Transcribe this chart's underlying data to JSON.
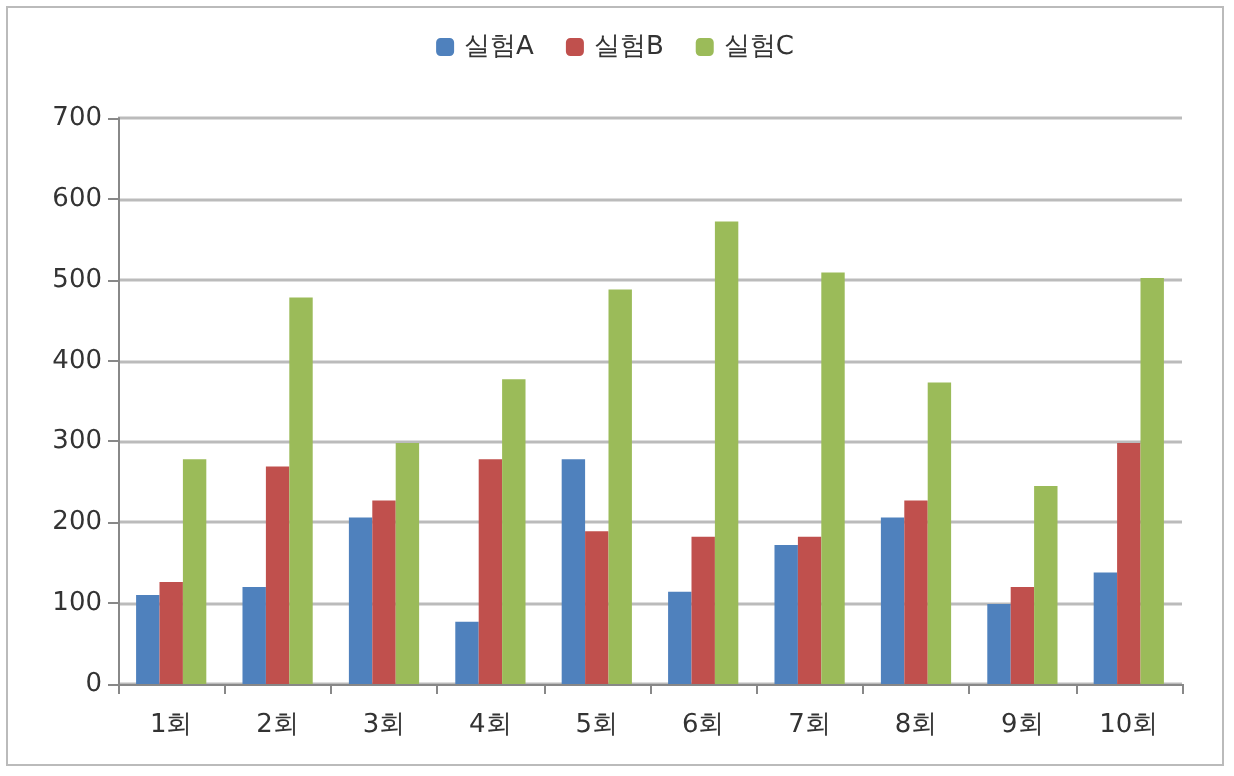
{
  "chart_data": {
    "type": "bar",
    "categories": [
      "1회",
      "2회",
      "3회",
      "4회",
      "5회",
      "6회",
      "7회",
      "8회",
      "9회",
      "10회"
    ],
    "series": [
      {
        "name": "실험A",
        "color": "#4f81bd",
        "values": [
          110,
          120,
          206,
          77,
          278,
          114,
          172,
          206,
          99,
          138
        ]
      },
      {
        "name": "실험B",
        "color": "#c0504d",
        "values": [
          126,
          269,
          227,
          278,
          189,
          182,
          182,
          227,
          120,
          298
        ]
      },
      {
        "name": "실험C",
        "color": "#9bbb59",
        "values": [
          278,
          478,
          298,
          377,
          488,
          572,
          509,
          373,
          245,
          502
        ]
      }
    ],
    "ylim": [
      0,
      700
    ],
    "yticks": [
      0,
      100,
      200,
      300,
      400,
      500,
      600,
      700
    ],
    "grid": "y",
    "legend": "top"
  }
}
